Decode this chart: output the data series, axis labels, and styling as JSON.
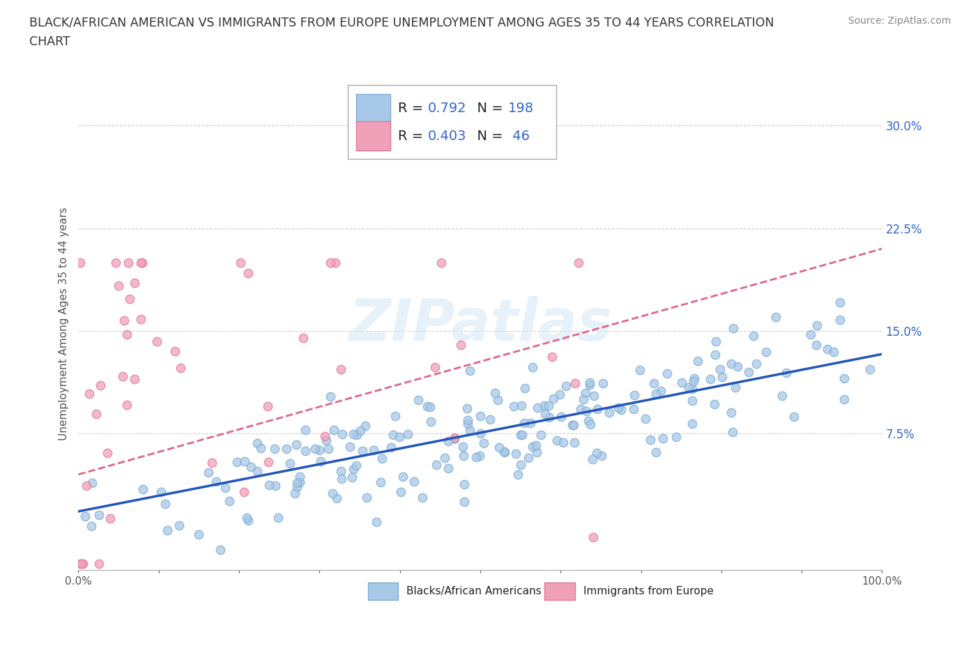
{
  "title_line1": "BLACK/AFRICAN AMERICAN VS IMMIGRANTS FROM EUROPE UNEMPLOYMENT AMONG AGES 35 TO 44 YEARS CORRELATION",
  "title_line2": "CHART",
  "source": "Source: ZipAtlas.com",
  "ylabel": "Unemployment Among Ages 35 to 44 years",
  "xlim": [
    0.0,
    1.0
  ],
  "ylim": [
    -0.025,
    0.335
  ],
  "xticks": [
    0.0,
    0.1,
    0.2,
    0.3,
    0.4,
    0.5,
    0.6,
    0.7,
    0.8,
    0.9,
    1.0
  ],
  "xticklabels": [
    "0.0%",
    "",
    "",
    "",
    "",
    "",
    "",
    "",
    "",
    "",
    "100.0%"
  ],
  "yticks": [
    0.075,
    0.15,
    0.225,
    0.3
  ],
  "yticklabels": [
    "7.5%",
    "15.0%",
    "22.5%",
    "30.0%"
  ],
  "blue_R": 0.792,
  "blue_N": 198,
  "pink_R": 0.403,
  "pink_N": 46,
  "blue_color": "#a8c8e8",
  "pink_color": "#f0a0b8",
  "blue_edge_color": "#7aadd0",
  "pink_edge_color": "#e07898",
  "blue_line_color": "#2255bb",
  "pink_line_color": "#dd6688",
  "legend_label_blue": "Blacks/African Americans",
  "legend_label_pink": "Immigrants from Europe",
  "watermark": "ZIPatlas",
  "background_color": "#ffffff",
  "grid_color": "#cccccc",
  "title_color": "#333333",
  "annotation_color": "#3366cc",
  "seed": 42,
  "blue_intercept": 0.018,
  "blue_slope": 0.115,
  "pink_intercept": 0.045,
  "pink_slope": 0.165
}
